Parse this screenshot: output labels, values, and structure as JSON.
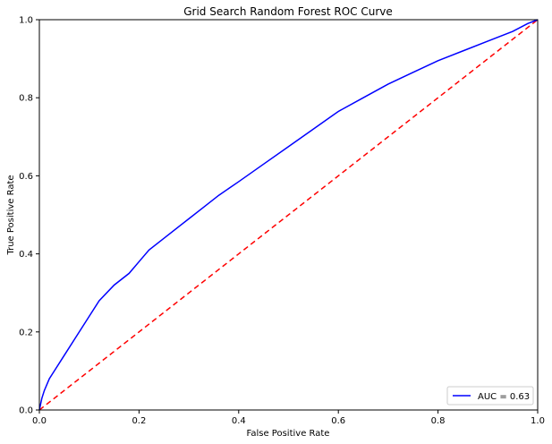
{
  "chart_data": {
    "type": "line",
    "title": "Grid Search Random Forest ROC Curve",
    "xlabel": "False Positive Rate",
    "ylabel": "True Positive Rate",
    "xlim": [
      0,
      1
    ],
    "ylim": [
      0,
      1
    ],
    "x_ticks": [
      0.0,
      0.2,
      0.4,
      0.6,
      0.8,
      1.0
    ],
    "y_ticks": [
      0.0,
      0.2,
      0.4,
      0.6,
      0.8,
      1.0
    ],
    "x_tick_labels": [
      "0.0",
      "0.2",
      "0.4",
      "0.6",
      "0.8",
      "1.0"
    ],
    "y_tick_labels": [
      "0.0",
      "0.2",
      "0.4",
      "0.6",
      "0.8",
      "1.0"
    ],
    "grid": false,
    "legend_position": "lower-right",
    "series": [
      {
        "name": "AUC = 0.63",
        "color": "#0000ff",
        "style": "solid",
        "x": [
          0.0,
          0.005,
          0.01,
          0.02,
          0.03,
          0.05,
          0.07,
          0.1,
          0.12,
          0.15,
          0.18,
          0.2,
          0.22,
          0.25,
          0.28,
          0.3,
          0.33,
          0.36,
          0.4,
          0.45,
          0.5,
          0.55,
          0.6,
          0.65,
          0.7,
          0.75,
          0.8,
          0.85,
          0.9,
          0.95,
          0.98,
          1.0
        ],
        "y": [
          0.0,
          0.03,
          0.05,
          0.08,
          0.1,
          0.14,
          0.18,
          0.24,
          0.28,
          0.32,
          0.35,
          0.38,
          0.41,
          0.44,
          0.47,
          0.49,
          0.52,
          0.55,
          0.585,
          0.63,
          0.675,
          0.72,
          0.765,
          0.8,
          0.835,
          0.865,
          0.895,
          0.92,
          0.945,
          0.97,
          0.99,
          1.0
        ]
      },
      {
        "color": "#ff0000",
        "style": "dashed",
        "x": [
          0,
          1
        ],
        "y": [
          0,
          1
        ]
      }
    ]
  }
}
